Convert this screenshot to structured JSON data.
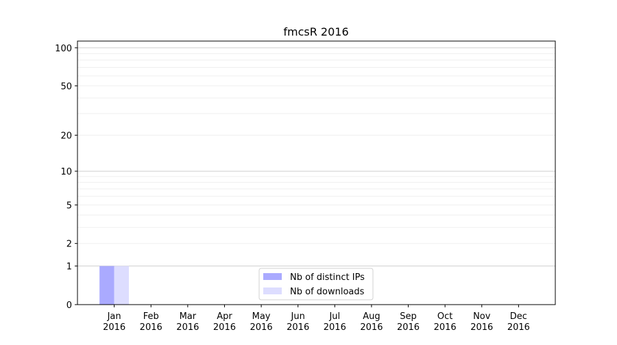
{
  "chart_data": {
    "type": "bar",
    "title": "fmcsR 2016",
    "xlabel": "",
    "ylabel": "",
    "yscale": "symlog (log of 1+y)",
    "ylim": [
      0,
      113
    ],
    "yticks": [
      0,
      1,
      2,
      5,
      10,
      20,
      50,
      100
    ],
    "grid": true,
    "legend_position": "lower-center",
    "categories": [
      "Jan\n2016",
      "Feb\n2016",
      "Mar\n2016",
      "Apr\n2016",
      "May\n2016",
      "Jun\n2016",
      "Jul\n2016",
      "Aug\n2016",
      "Sep\n2016",
      "Oct\n2016",
      "Nov\n2016",
      "Dec\n2016"
    ],
    "series": [
      {
        "name": "Nb of distinct IPs",
        "color": "#aaaaff",
        "values": [
          1,
          0,
          0,
          0,
          0,
          0,
          0,
          0,
          0,
          0,
          0,
          0
        ]
      },
      {
        "name": "Nb of downloads",
        "color": "#ddddff",
        "values": [
          1,
          0,
          0,
          0,
          0,
          0,
          0,
          0,
          0,
          0,
          0,
          0
        ]
      }
    ]
  }
}
